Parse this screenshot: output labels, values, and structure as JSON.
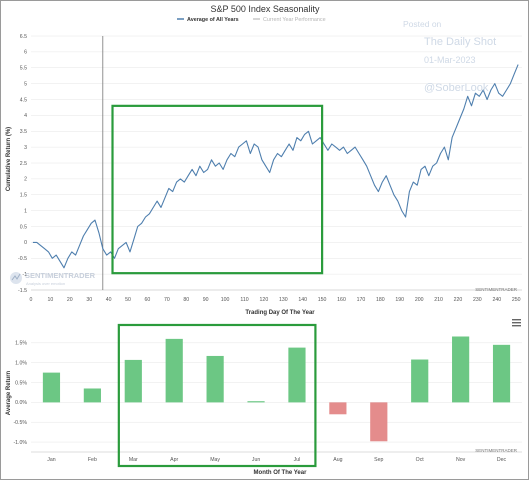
{
  "title": "S&P 500 Index Seasonality",
  "legend": [
    {
      "label": "Average of All Years",
      "color": "#4f7fae"
    },
    {
      "label": "Current Year Performance",
      "color": "#c8c8c8"
    }
  ],
  "watermark": {
    "line1": "Posted on",
    "line2": "The Daily Shot",
    "line3": "01-Mar-2023",
    "handle": "@SoberLook"
  },
  "logo": {
    "name": "SENTIMENTRADER",
    "tagline": "Analysis over emotion"
  },
  "credit_top": "SENTIMENTRADER",
  "credit_bottom": "SENTIMENTRADER",
  "menu_icon": "hamburger-menu-icon",
  "colors": {
    "line": "#4f7fae",
    "positive_bar": "#6cc784",
    "negative_bar": "#e48c8c",
    "highlight_box": "#2a9b3c",
    "grid": "#e6e6e6",
    "marker_line": "#777777"
  },
  "chart_data": [
    {
      "type": "line",
      "title": "S&P 500 Index Seasonality",
      "xlabel": "Trading Day Of The Year",
      "ylabel": "Cumulative Return (%)",
      "xlim": [
        0,
        253
      ],
      "ylim": [
        -1.5,
        6.5
      ],
      "x_ticks": [
        0,
        10,
        20,
        30,
        40,
        50,
        60,
        70,
        80,
        90,
        100,
        110,
        120,
        130,
        140,
        150,
        160,
        170,
        180,
        190,
        200,
        210,
        220,
        230,
        240,
        250
      ],
      "y_ticks": [
        -1.5,
        -1,
        -0.5,
        0,
        0.5,
        1,
        1.5,
        2,
        2.5,
        3,
        3.5,
        4,
        4.5,
        5,
        5.5,
        6,
        6.5
      ],
      "current_day_marker": 37,
      "highlight_x_range": [
        42,
        150
      ],
      "series": [
        {
          "name": "Average of All Years",
          "x": [
            1,
            3,
            5,
            7,
            9,
            11,
            13,
            15,
            17,
            19,
            21,
            23,
            25,
            27,
            29,
            31,
            33,
            35,
            37,
            39,
            41,
            43,
            45,
            47,
            49,
            51,
            53,
            55,
            57,
            59,
            61,
            63,
            65,
            67,
            69,
            71,
            73,
            75,
            77,
            79,
            81,
            83,
            85,
            87,
            89,
            91,
            93,
            95,
            97,
            99,
            101,
            103,
            105,
            107,
            109,
            111,
            113,
            115,
            117,
            119,
            121,
            123,
            125,
            127,
            129,
            131,
            133,
            135,
            137,
            139,
            141,
            143,
            145,
            147,
            149,
            151,
            153,
            155,
            157,
            159,
            161,
            163,
            165,
            167,
            169,
            171,
            173,
            175,
            177,
            179,
            181,
            183,
            185,
            187,
            189,
            191,
            193,
            195,
            197,
            199,
            201,
            203,
            205,
            207,
            209,
            211,
            213,
            215,
            217,
            219,
            221,
            223,
            225,
            227,
            229,
            231,
            233,
            235,
            237,
            239,
            241,
            243,
            245,
            247,
            249,
            251
          ],
          "y": [
            0.0,
            0.0,
            -0.1,
            -0.2,
            -0.3,
            -0.5,
            -0.4,
            -0.6,
            -0.8,
            -0.5,
            -0.3,
            -0.4,
            -0.1,
            0.2,
            0.4,
            0.6,
            0.7,
            0.3,
            -0.2,
            -0.4,
            -0.3,
            -0.5,
            -0.2,
            -0.1,
            0.0,
            -0.3,
            0.1,
            0.5,
            0.6,
            0.8,
            0.9,
            1.1,
            1.3,
            1.1,
            1.4,
            1.7,
            1.6,
            1.9,
            2.0,
            1.9,
            2.1,
            2.3,
            2.1,
            2.4,
            2.2,
            2.3,
            2.6,
            2.4,
            2.5,
            2.3,
            2.6,
            2.8,
            2.7,
            3.0,
            3.1,
            3.2,
            2.8,
            3.1,
            3.0,
            2.6,
            2.4,
            2.2,
            2.6,
            2.8,
            2.7,
            2.9,
            3.1,
            2.9,
            3.3,
            3.2,
            3.4,
            3.5,
            3.1,
            3.2,
            3.3,
            3.1,
            2.9,
            3.1,
            3.0,
            2.9,
            3.0,
            2.8,
            2.9,
            3.0,
            2.8,
            2.6,
            2.4,
            2.1,
            1.8,
            1.6,
            1.9,
            2.1,
            1.8,
            1.5,
            1.3,
            1.0,
            0.8,
            1.6,
            1.9,
            1.8,
            2.3,
            2.4,
            2.1,
            2.4,
            2.5,
            2.8,
            3.0,
            2.6,
            3.3,
            3.6,
            3.9,
            4.2,
            4.6,
            4.3,
            4.7,
            4.6,
            4.8,
            4.5,
            4.8,
            5.0,
            4.7,
            4.6,
            4.8,
            5.0,
            5.3,
            5.6
          ]
        }
      ]
    },
    {
      "type": "bar",
      "xlabel": "Month Of The Year",
      "ylabel": "Average Return",
      "ylim": [
        -1.25,
        2.0
      ],
      "y_ticks": [
        -1.0,
        -0.5,
        0.0,
        0.5,
        1.0,
        1.5
      ],
      "y_tick_labels": [
        "-1.0%",
        "-0.5%",
        "0.0%",
        "0.5%",
        "1.0%",
        "1.5%"
      ],
      "categories": [
        "Jan",
        "Feb",
        "Mar",
        "Apr",
        "May",
        "Jun",
        "Jul",
        "Aug",
        "Sep",
        "Oct",
        "Nov",
        "Dec"
      ],
      "values": [
        0.75,
        0.35,
        1.07,
        1.6,
        1.17,
        0.03,
        1.38,
        -0.3,
        -0.98,
        1.08,
        1.66,
        1.45
      ],
      "highlight_categories": [
        "Mar",
        "Jul"
      ]
    }
  ]
}
